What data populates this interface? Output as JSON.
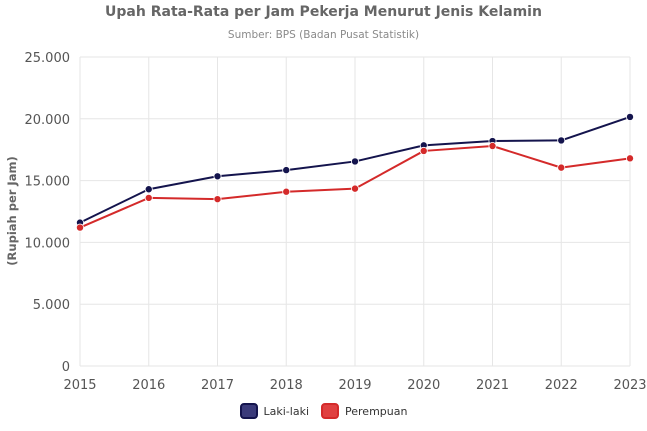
{
  "chart_data": {
    "type": "line",
    "title": "Upah Rata-Rata per Jam Pekerja Menurut Jenis Kelamin",
    "subtitle": "Sumber: BPS (Badan Pusat Statistik)",
    "xlabel": "",
    "ylabel": "(Rupiah per Jam)",
    "x": [
      2015,
      2016,
      2017,
      2018,
      2019,
      2020,
      2021,
      2022,
      2023
    ],
    "ylim": [
      0,
      25000
    ],
    "yticks": [
      0,
      5000,
      10000,
      15000,
      20000,
      25000
    ],
    "ytick_labels": [
      "0",
      "5.000",
      "10.000",
      "15.000",
      "20.000",
      "25.000"
    ],
    "grid": true,
    "legend_position": "bottom",
    "series": [
      {
        "name": "Laki-laki",
        "color": "#14144d",
        "fill": "#3a3a7a",
        "values": [
          11600,
          14300,
          15350,
          15850,
          16550,
          17850,
          18200,
          18250,
          20150
        ]
      },
      {
        "name": "Perempuan",
        "color": "#d42a2a",
        "fill": "#e04040",
        "values": [
          11200,
          13600,
          13500,
          14100,
          14350,
          17400,
          17800,
          16050,
          16800
        ]
      }
    ]
  }
}
